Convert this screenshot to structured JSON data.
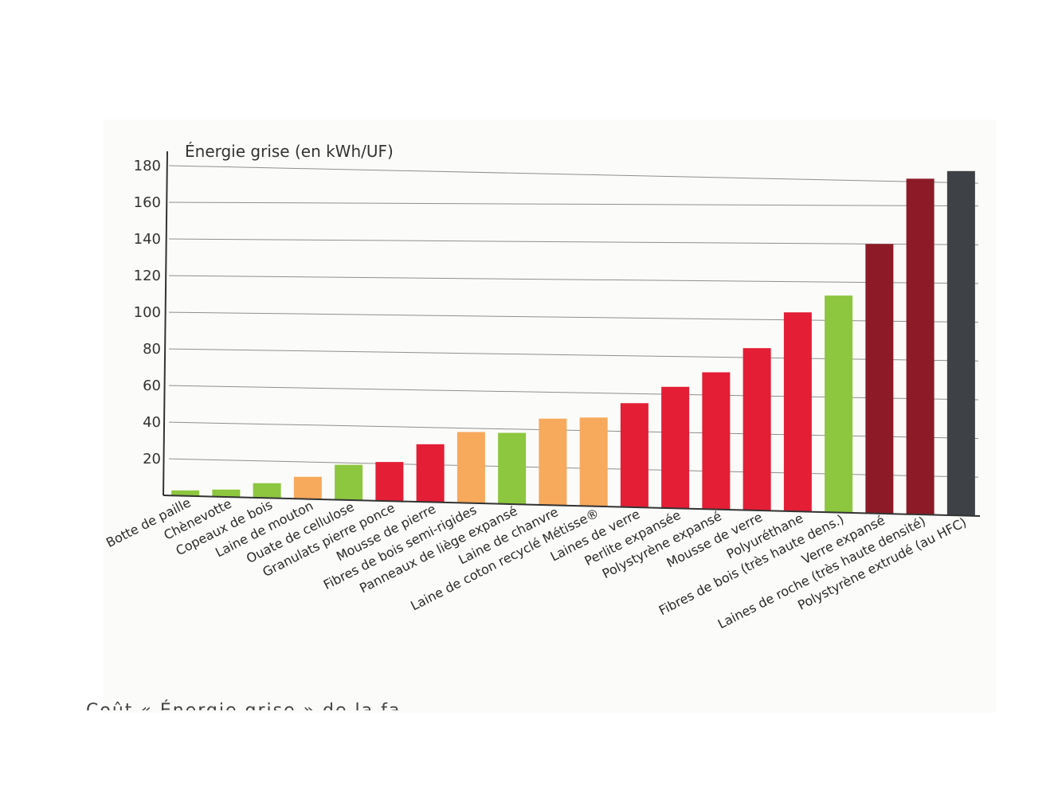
{
  "chart_data": {
    "type": "bar",
    "ylabel": "Énergie grise (en kWh/UF)",
    "ylim": [
      0,
      180
    ],
    "yticks": [
      20,
      40,
      60,
      80,
      100,
      120,
      140,
      160,
      180
    ],
    "grid": true,
    "categories": [
      "Botte de paille",
      "Chènevotte",
      "Copeaux de bois",
      "Laine de mouton",
      "Ouate de cellulose",
      "Granulats pierre ponce",
      "Mousse de pierre",
      "Fibres de bois semi-rigides",
      "Panneaux de liège expansé",
      "Laine de chanvre",
      "Laine de coton recyclé Métisse®",
      "Laines de verre",
      "Perlite expansée",
      "Polystyrène expansé",
      "Mousse de verre",
      "Polyuréthane",
      "Fibres de bois (très haute dens.)",
      "Verre expansé",
      "Laines de roche (très haute densité)",
      "Polystyrène extrudé (au HFC)"
    ],
    "values": [
      3,
      4,
      8,
      12,
      19,
      21,
      31,
      38,
      38,
      46,
      47,
      55,
      64,
      72,
      85,
      104,
      113,
      140,
      174,
      178
    ],
    "bar_colors": [
      "#8dc63f",
      "#8dc63f",
      "#8dc63f",
      "#f7a95c",
      "#8dc63f",
      "#e31e35",
      "#e31e35",
      "#f7a95c",
      "#8dc63f",
      "#f7a95c",
      "#f7a95c",
      "#e31e35",
      "#e31e35",
      "#e31e35",
      "#e31e35",
      "#e31e35",
      "#8dc63f",
      "#8c1b27",
      "#8c1b27",
      "#3e4145"
    ]
  },
  "caption_fragment": "Coût « Énergie grise » de la fa"
}
